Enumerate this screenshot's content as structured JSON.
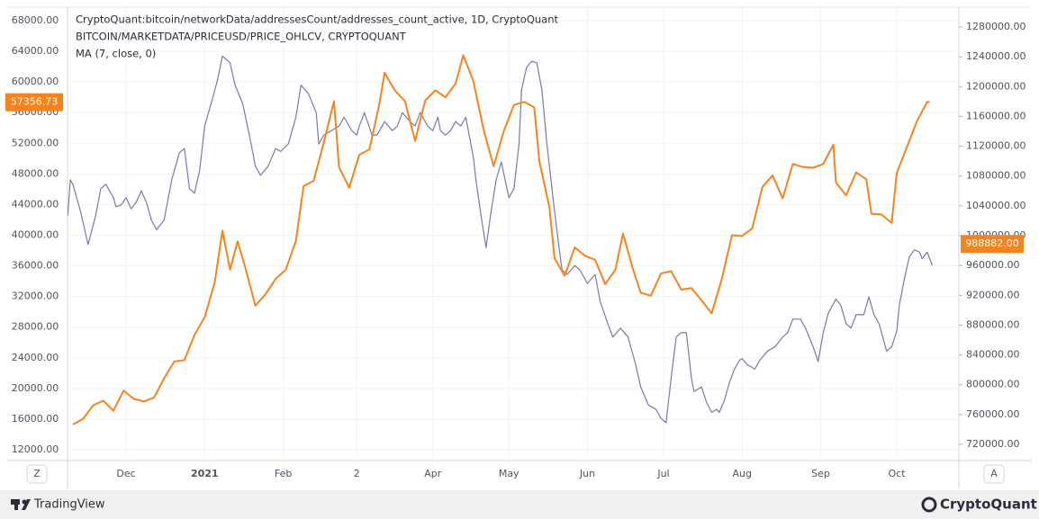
{
  "chart_data": {
    "type": "line",
    "annotations": [
      "CryptoQuant:bitcoin/networkData/addressesCount/addresses_count_active, 1D, CryptoQuant"
    ],
    "xlim": [
      -23.1,
      328.5
    ],
    "xticks": [
      {
        "value": 0,
        "label": "Dec"
      },
      {
        "value": 31,
        "label": "2021",
        "bold": true
      },
      {
        "value": 62,
        "label": "Feb"
      },
      {
        "value": 91,
        "label": "2"
      },
      {
        "value": 121,
        "label": "Apr"
      },
      {
        "value": 151,
        "label": "May"
      },
      {
        "value": 182,
        "label": "Jun"
      },
      {
        "value": 212,
        "label": "Jul"
      },
      {
        "value": 243,
        "label": "Aug"
      },
      {
        "value": 274,
        "label": "Sep"
      },
      {
        "value": 304,
        "label": "Oct"
      }
    ],
    "ylim": [
      10590,
      69760
    ],
    "yticks": [
      {
        "value": 68000,
        "label": "68000.00"
      },
      {
        "value": 64000,
        "label": "64000.00"
      },
      {
        "value": 60000,
        "label": "60000.00"
      },
      {
        "value": 56000,
        "label": "56000.00"
      },
      {
        "value": 52000,
        "label": "52000.00"
      },
      {
        "value": 48000,
        "label": "48000.00"
      },
      {
        "value": 44000,
        "label": "44000.00"
      },
      {
        "value": 40000,
        "label": "40000.00"
      },
      {
        "value": 36000,
        "label": "36000.00"
      },
      {
        "value": 32000,
        "label": "32000.00"
      },
      {
        "value": 28000,
        "label": "28000.00"
      },
      {
        "value": 24000,
        "label": "24000.00"
      },
      {
        "value": 20000,
        "label": "20000.00"
      },
      {
        "value": 16000,
        "label": "16000.00"
      },
      {
        "value": 12000,
        "label": "12000.00"
      }
    ],
    "y2lim": [
      698300,
      1306550
    ],
    "y2ticks": [
      {
        "value": 1280000,
        "label": "1280000.00"
      },
      {
        "value": 1240000,
        "label": "1240000.00"
      },
      {
        "value": 1200000,
        "label": "1200000.00"
      },
      {
        "value": 1160000,
        "label": "1160000.00"
      },
      {
        "value": 1120000,
        "label": "1120000.00"
      },
      {
        "value": 1080000,
        "label": "1080000.00"
      },
      {
        "value": 1040000,
        "label": "1040000.00"
      },
      {
        "value": 1000000,
        "label": "1000000.00"
      },
      {
        "value": 960000,
        "label": "960000.00"
      },
      {
        "value": 920000,
        "label": "920000.00"
      },
      {
        "value": 880000,
        "label": "880000.00"
      },
      {
        "value": 840000,
        "label": "840000.00"
      },
      {
        "value": 800000,
        "label": "800000.00"
      },
      {
        "value": 760000,
        "label": "760000.00"
      },
      {
        "value": 720000,
        "label": "720000.00"
      }
    ],
    "grid": true,
    "series": [
      {
        "name": "BITCOIN/MARKETDATA/PRICEUSD/PRICE_OHLCV, CRYPTOQUANT",
        "color": "#f5841f",
        "axis": "y",
        "x": [
          -21,
          -17,
          -13,
          -9,
          -5,
          -1,
          3,
          7,
          11,
          15,
          19,
          23,
          27,
          31,
          35,
          38,
          41,
          44,
          47,
          51,
          55,
          59,
          63,
          67,
          70,
          74,
          78,
          82,
          84,
          88,
          92,
          96,
          100,
          102,
          106,
          110,
          114,
          118,
          122,
          126,
          130,
          133,
          137,
          141,
          145,
          149,
          153,
          157,
          161,
          163,
          167,
          169,
          173,
          177,
          181,
          185,
          189,
          193,
          196,
          200,
          203,
          207,
          211,
          215,
          219,
          223,
          227,
          231,
          235,
          239,
          243,
          247,
          251,
          255,
          259,
          263,
          267,
          271,
          275,
          279,
          280,
          284,
          288,
          292,
          294,
          298,
          302,
          304,
          308,
          312,
          316,
          317
        ],
        "values": [
          15300,
          16000,
          17800,
          18400,
          17100,
          19700,
          18650,
          18300,
          18800,
          21300,
          23500,
          23700,
          27000,
          29300,
          33900,
          40600,
          35500,
          39200,
          35800,
          30800,
          32300,
          34300,
          35500,
          39300,
          46400,
          47100,
          52100,
          57500,
          48900,
          46200,
          50500,
          51200,
          57300,
          61200,
          58900,
          57500,
          52300,
          57600,
          58900,
          58000,
          59800,
          63500,
          60100,
          53800,
          49000,
          53600,
          57000,
          57400,
          56700,
          49700,
          43600,
          37000,
          34700,
          38400,
          37300,
          36800,
          33600,
          35500,
          40200,
          35500,
          32500,
          32100,
          35000,
          35300,
          32900,
          33100,
          31500,
          29800,
          34300,
          40000,
          39900,
          40900,
          46300,
          47800,
          44800,
          49300,
          48900,
          48800,
          49300,
          51800,
          46900,
          45200,
          48200,
          47300,
          42800,
          42700,
          41600,
          48100,
          51500,
          54900,
          57400,
          57356.73
        ]
      },
      {
        "name": "MA (7, close, 0)",
        "color": "#7c79a8",
        "axis": "y2",
        "x": [
          -23,
          -22,
          -21,
          -18,
          -15,
          -12,
          -10,
          -8,
          -5,
          -4,
          -2,
          0,
          2,
          4,
          6,
          8,
          10,
          12,
          15,
          18,
          21,
          23,
          25,
          27,
          29,
          31,
          34,
          36,
          38,
          41,
          43,
          46,
          49,
          51,
          53,
          56,
          59,
          61,
          64,
          67,
          69,
          72,
          75,
          76,
          78,
          81,
          84,
          86,
          89,
          91,
          92,
          94,
          97,
          99,
          102,
          105,
          107,
          109,
          112,
          114,
          116,
          119,
          121,
          123,
          124,
          126,
          128,
          130,
          132,
          134,
          137,
          138,
          140,
          142,
          144,
          146,
          148,
          151,
          153,
          155,
          156,
          158,
          160,
          162,
          164,
          166,
          169,
          171,
          172,
          174,
          177,
          179,
          182,
          185,
          187,
          190,
          192,
          195,
          198,
          201,
          203,
          206,
          209,
          211,
          213,
          215,
          217,
          219,
          221,
          223,
          224,
          227,
          229,
          231,
          233,
          234,
          236,
          238,
          240,
          242,
          243,
          245,
          248,
          250,
          253,
          256,
          259,
          261,
          263,
          266,
          268,
          271,
          273,
          275,
          277,
          280,
          282,
          284,
          286,
          288,
          291,
          293,
          295,
          297,
          298,
          300,
          302,
          304,
          305,
          307,
          309,
          311,
          313,
          314,
          316,
          318
        ],
        "values": [
          1027000,
          1075000,
          1069000,
          1033000,
          988000,
          1027000,
          1063000,
          1069000,
          1051000,
          1039000,
          1041000,
          1051000,
          1036000,
          1045000,
          1060000,
          1045000,
          1021000,
          1008000,
          1021000,
          1075000,
          1111000,
          1117000,
          1063000,
          1057000,
          1087000,
          1147000,
          1183000,
          1208000,
          1241000,
          1232000,
          1202000,
          1177000,
          1129000,
          1093000,
          1081000,
          1093000,
          1117000,
          1113000,
          1123000,
          1159000,
          1202000,
          1190000,
          1165000,
          1123000,
          1135000,
          1141000,
          1147000,
          1159000,
          1141000,
          1135000,
          1147000,
          1165000,
          1135000,
          1135000,
          1153000,
          1141000,
          1147000,
          1165000,
          1153000,
          1147000,
          1165000,
          1147000,
          1141000,
          1159000,
          1141000,
          1135000,
          1141000,
          1153000,
          1147000,
          1159000,
          1105000,
          1075000,
          1027000,
          984000,
          1033000,
          1075000,
          1099000,
          1051000,
          1063000,
          1123000,
          1196000,
          1226000,
          1234000,
          1232000,
          1196000,
          1123000,
          1033000,
          978000,
          954000,
          948000,
          960000,
          954000,
          936000,
          948000,
          912000,
          882000,
          864000,
          876000,
          864000,
          827000,
          797000,
          773000,
          767000,
          755000,
          749000,
          809000,
          864000,
          870000,
          870000,
          809000,
          791000,
          797000,
          776000,
          763000,
          767000,
          763000,
          779000,
          803000,
          821000,
          833000,
          835000,
          827000,
          821000,
          833000,
          845000,
          851000,
          864000,
          870000,
          888000,
          888000,
          876000,
          851000,
          831000,
          870000,
          896000,
          915000,
          906000,
          882000,
          876000,
          894000,
          894000,
          918000,
          894000,
          882000,
          870000,
          845000,
          851000,
          872000,
          906000,
          942000,
          972000,
          981000,
          978000,
          969000,
          978000,
          960000
        ]
      }
    ],
    "price_labels": [
      {
        "value": 57356.73,
        "label": "57356.73",
        "axis": "y",
        "color": "#f5841f"
      },
      {
        "value": 988882,
        "label": "988882.00",
        "axis": "y2",
        "color": "#f5841f"
      }
    ]
  },
  "ui": {
    "corner_buttons": [
      "Z",
      "A"
    ],
    "footer": {
      "left": "TradingView",
      "right": "CryptoQuant"
    }
  }
}
